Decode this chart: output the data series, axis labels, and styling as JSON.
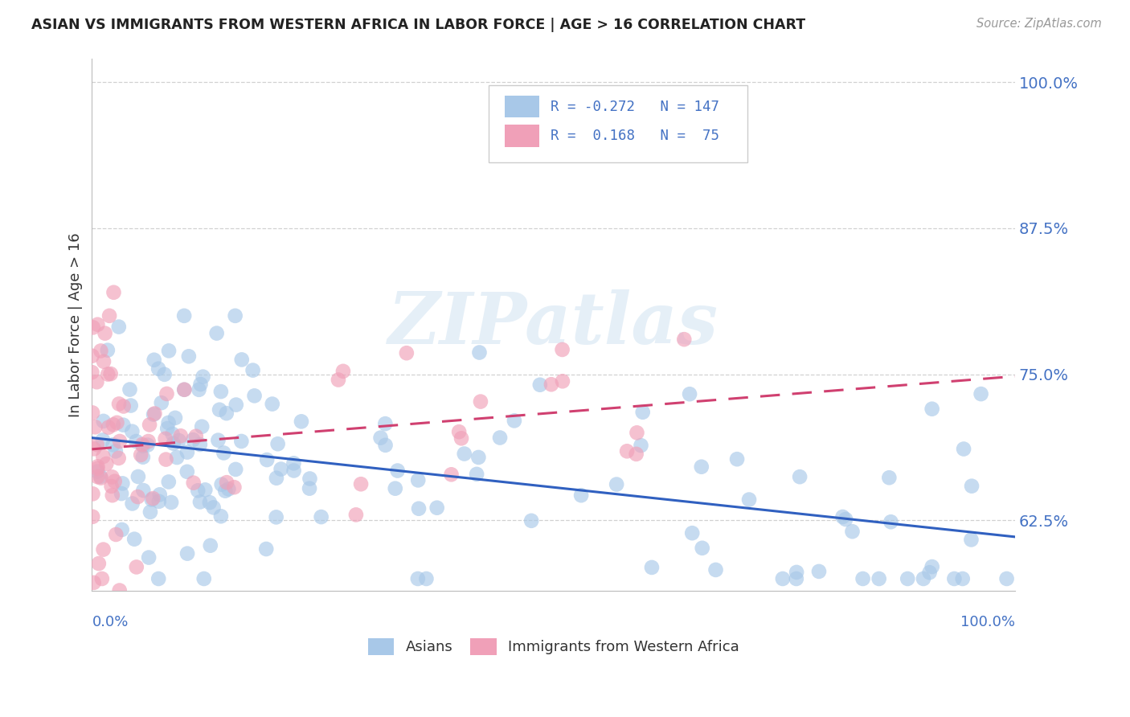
{
  "title": "ASIAN VS IMMIGRANTS FROM WESTERN AFRICA IN LABOR FORCE | AGE > 16 CORRELATION CHART",
  "source": "Source: ZipAtlas.com",
  "ylabel": "In Labor Force | Age > 16",
  "ytick_labels": [
    "62.5%",
    "75.0%",
    "87.5%",
    "100.0%"
  ],
  "ytick_values": [
    0.625,
    0.75,
    0.875,
    1.0
  ],
  "xlim": [
    0.0,
    1.0
  ],
  "ylim": [
    0.565,
    1.02
  ],
  "asian_color": "#a8c8e8",
  "western_africa_color": "#f0a0b8",
  "trend_asian_color": "#3060c0",
  "trend_wa_color": "#d04070",
  "background_color": "#ffffff",
  "grid_color": "#cccccc",
  "title_color": "#222222",
  "axis_label_color": "#4472c4",
  "legend_R_asian": "R = -0.272",
  "legend_N_asian": "N = 147",
  "legend_R_wa": "R =  0.168",
  "legend_N_wa": "N =  75",
  "watermark_text": "ZIPatlas",
  "source_text": "Source: ZipAtlas.com",
  "bottom_legend_asian": "Asians",
  "bottom_legend_wa": "Immigrants from Western Africa"
}
